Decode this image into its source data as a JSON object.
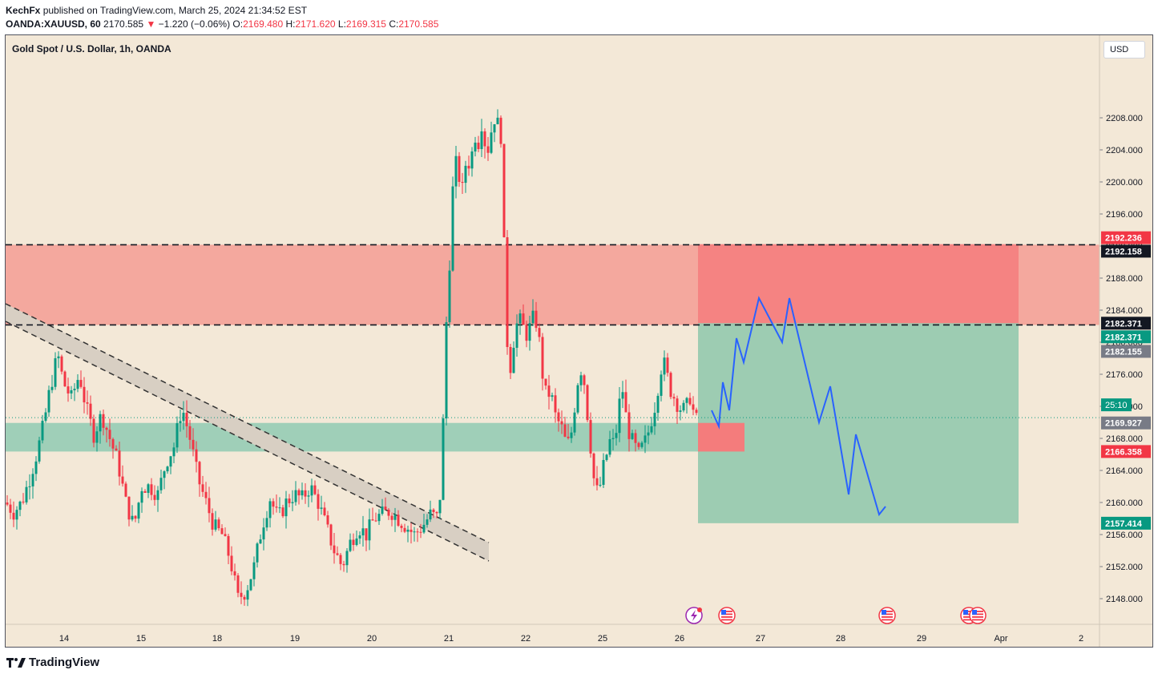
{
  "header": {
    "author": "KechFx",
    "published_text": "published on TradingView.com, March 25, 2024 21:34:52 EST",
    "symbol": "OANDA:XAUUSD, 60",
    "last_price": "2170.585",
    "change_arrow": "▼",
    "change": "−1.220 (−0.06%)",
    "o_label": "O:",
    "o_value": "2169.480",
    "h_label": "H:",
    "h_value": "2171.620",
    "l_label": "L:",
    "l_value": "2169.315",
    "c_label": "C:",
    "c_value": "2170.585"
  },
  "chart_title": "Gold Spot / U.S. Dollar, 1h, OANDA",
  "currency_button": "USD",
  "footer": {
    "brand": "TradingView",
    "logo_icon": "tradingview-logo-icon"
  },
  "colors": {
    "background": "#f3e8d7",
    "bull": "#089981",
    "bear": "#f23645",
    "resistance_zone": "#f4a89e",
    "support_zone": "#9fcfb8",
    "stop_zone": "#f47c7c",
    "target_zone": "#93c9ae",
    "projection": "#2962ff",
    "channel": "#d8cfc3"
  },
  "chart_data": {
    "type": "candlestick",
    "symbol": "XAUUSD",
    "interval": "1h",
    "ylim": [
      2144.8,
      2218.3
    ],
    "y_ticks": [
      2148.0,
      2152.0,
      2156.0,
      2160.0,
      2164.0,
      2168.0,
      2172.0,
      2176.0,
      2180.0,
      2184.0,
      2188.0,
      2192.0,
      2196.0,
      2200.0,
      2204.0,
      2208.0
    ],
    "x_ticks": [
      "14",
      "15",
      "18",
      "19",
      "20",
      "21",
      "22",
      "25",
      "26",
      "27",
      "28",
      "29",
      "Apr",
      "2"
    ],
    "price_path": [
      [
        0,
        2160.0
      ],
      [
        10,
        2158.8
      ],
      [
        20,
        2160.0
      ],
      [
        30,
        2163.0
      ],
      [
        40,
        2166.5
      ],
      [
        48,
        2170.0
      ],
      [
        55,
        2174.0
      ],
      [
        65,
        2178.5
      ],
      [
        72,
        2175.0
      ],
      [
        82,
        2173.0
      ],
      [
        92,
        2176.0
      ],
      [
        100,
        2172.0
      ],
      [
        110,
        2168.5
      ],
      [
        120,
        2171.0
      ],
      [
        130,
        2168.0
      ],
      [
        140,
        2165.0
      ],
      [
        150,
        2160.0
      ],
      [
        160,
        2157.0
      ],
      [
        170,
        2162.0
      ],
      [
        180,
        2162.0
      ],
      [
        190,
        2161.0
      ],
      [
        200,
        2165.0
      ],
      [
        210,
        2167.0
      ],
      [
        220,
        2172.0
      ],
      [
        230,
        2168.0
      ],
      [
        240,
        2163.0
      ],
      [
        250,
        2160.0
      ],
      [
        260,
        2157.0
      ],
      [
        270,
        2156.0
      ],
      [
        280,
        2153.0
      ],
      [
        290,
        2148.0
      ],
      [
        300,
        2149.0
      ],
      [
        310,
        2152.0
      ],
      [
        320,
        2157.0
      ],
      [
        330,
        2160.5
      ],
      [
        340,
        2158.0
      ],
      [
        350,
        2160.0
      ],
      [
        360,
        2161.0
      ],
      [
        370,
        2160.5
      ],
      [
        380,
        2162.0
      ],
      [
        390,
        2160.0
      ],
      [
        400,
        2157.0
      ],
      [
        410,
        2154.0
      ],
      [
        420,
        2152.0
      ],
      [
        430,
        2155.0
      ],
      [
        440,
        2157.0
      ],
      [
        450,
        2156.0
      ],
      [
        460,
        2158.0
      ],
      [
        470,
        2158.5
      ],
      [
        480,
        2159.0
      ],
      [
        490,
        2158.0
      ],
      [
        500,
        2157.0
      ],
      [
        510,
        2156.0
      ],
      [
        520,
        2157.0
      ],
      [
        530,
        2158.5
      ],
      [
        540,
        2158.0
      ],
      [
        545,
        2165.0
      ],
      [
        548,
        2180.0
      ],
      [
        552,
        2185.0
      ],
      [
        556,
        2195.0
      ],
      [
        560,
        2203.0
      ],
      [
        565,
        2201.0
      ],
      [
        570,
        2199.0
      ],
      [
        575,
        2203.0
      ],
      [
        580,
        2202.0
      ],
      [
        585,
        2206.0
      ],
      [
        590,
        2205.0
      ],
      [
        595,
        2208.0
      ],
      [
        600,
        2203.0
      ],
      [
        605,
        2206.0
      ],
      [
        610,
        2208.0
      ],
      [
        615,
        2207.0
      ],
      [
        620,
        2205.0
      ],
      [
        622,
        2192.0
      ],
      [
        626,
        2180.0
      ],
      [
        630,
        2177.0
      ],
      [
        635,
        2181.0
      ],
      [
        640,
        2183.0
      ],
      [
        645,
        2182.0
      ],
      [
        650,
        2181.0
      ],
      [
        655,
        2182.0
      ],
      [
        660,
        2183.5
      ],
      [
        665,
        2181.0
      ],
      [
        670,
        2176.0
      ],
      [
        675,
        2173.0
      ],
      [
        680,
        2174.0
      ],
      [
        685,
        2171.0
      ],
      [
        690,
        2170.0
      ],
      [
        695,
        2169.0
      ],
      [
        700,
        2167.0
      ],
      [
        705,
        2168.0
      ],
      [
        710,
        2172.0
      ],
      [
        715,
        2176.0
      ],
      [
        720,
        2177.0
      ],
      [
        725,
        2172.0
      ],
      [
        730,
        2167.0
      ],
      [
        735,
        2162.0
      ],
      [
        740,
        2161.0
      ],
      [
        745,
        2164.0
      ],
      [
        750,
        2166.0
      ],
      [
        755,
        2168.0
      ],
      [
        760,
        2167.0
      ],
      [
        765,
        2172.0
      ],
      [
        770,
        2174.0
      ],
      [
        775,
        2170.0
      ],
      [
        780,
        2168.0
      ],
      [
        785,
        2167.0
      ],
      [
        790,
        2166.0
      ],
      [
        795,
        2167.0
      ],
      [
        800,
        2168.0
      ],
      [
        805,
        2170.0
      ],
      [
        810,
        2172.0
      ],
      [
        815,
        2175.0
      ],
      [
        820,
        2178.0
      ],
      [
        825,
        2176.0
      ],
      [
        830,
        2174.0
      ],
      [
        835,
        2173.0
      ],
      [
        840,
        2172.0
      ],
      [
        845,
        2171.5
      ],
      [
        850,
        2172.0
      ],
      [
        855,
        2173.5
      ],
      [
        860,
        2170.0
      ],
      [
        864,
        2170.5
      ]
    ],
    "levels": [
      {
        "label": "2192.236",
        "price": 2192.236,
        "color": "#f23645",
        "style": "label"
      },
      {
        "label": "2192.158",
        "price": 2192.158,
        "color": "#131722",
        "style": "dashed"
      },
      {
        "label": "2182.371",
        "price": 2182.371,
        "color": "#131722",
        "style": "label"
      },
      {
        "label": "2182.371",
        "price": 2182.371,
        "color": "#089981",
        "style": "label"
      },
      {
        "label": "2182.155",
        "price": 2182.155,
        "color": "#787b86",
        "style": "dashed"
      },
      {
        "label": "2169.927",
        "price": 2169.927,
        "color": "#787b86",
        "style": "label"
      },
      {
        "label": "2166.358",
        "price": 2166.358,
        "color": "#f23645",
        "style": "label"
      },
      {
        "label": "2157.414",
        "price": 2157.414,
        "color": "#089981",
        "style": "label"
      }
    ],
    "countdown": "25:10",
    "zones": {
      "resistance": [
        2182.155,
        2192.158
      ],
      "support": [
        2166.358,
        2169.927
      ],
      "trade_stop": [
        2182.371,
        2192.236
      ],
      "trade_target": [
        2157.414,
        2182.371
      ]
    },
    "projection_path": [
      [
        881,
        2171.5
      ],
      [
        890,
        2169.5
      ],
      [
        895,
        2175.0
      ],
      [
        903,
        2171.5
      ],
      [
        912,
        2180.5
      ],
      [
        921,
        2177.5
      ],
      [
        940,
        2185.5
      ],
      [
        969,
        2180.0
      ],
      [
        978,
        2185.5
      ],
      [
        1015,
        2170.0
      ],
      [
        1029,
        2174.5
      ],
      [
        1052,
        2161.0
      ],
      [
        1061,
        2168.5
      ],
      [
        1090,
        2158.5
      ],
      [
        1098,
        2159.5
      ]
    ],
    "event_icons": [
      "lightning-icon",
      "us-flag-icon",
      "us-flag-icon",
      "us-flag-icon",
      "us-flag-icon"
    ]
  }
}
